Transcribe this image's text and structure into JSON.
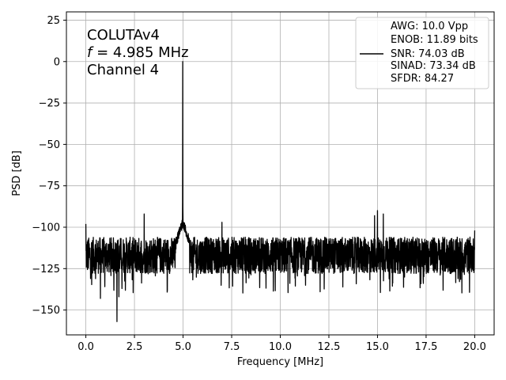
{
  "chart_data": {
    "type": "line",
    "xlabel": "Frequency [MHz]",
    "ylabel": "PSD [dB]",
    "xlim": [
      -1.0,
      21.0
    ],
    "ylim": [
      -165,
      30
    ],
    "xticks": [
      0.0,
      2.5,
      5.0,
      7.5,
      10.0,
      12.5,
      15.0,
      17.5,
      20.0
    ],
    "xtick_labels": [
      "0.0",
      "2.5",
      "5.0",
      "7.5",
      "10.0",
      "12.5",
      "15.0",
      "17.5",
      "20.0"
    ],
    "yticks": [
      -150,
      -125,
      -100,
      -75,
      -50,
      -25,
      0,
      25
    ],
    "ytick_labels": [
      "−150",
      "−125",
      "−100",
      "−75",
      "−50",
      "−25",
      "0",
      "25"
    ],
    "grid": true,
    "legend_position": "top-right",
    "annotation": {
      "line1": "COLUTAv4",
      "line2_var": "f",
      "line2_rest": " = 4.985 MHz",
      "line3": "Channel 4"
    },
    "legend": {
      "entries": [
        "AWG: 10.0 Vpp",
        "ENOB: 11.89 bits",
        "SNR: 74.03 dB",
        "SINAD: 73.34 dB",
        "SFDR: 84.27"
      ]
    },
    "series": [
      {
        "color": "#000000",
        "noise_floor": -115,
        "noise_range": [
          -128,
          -106
        ],
        "x_range": [
          0.0,
          20.0
        ],
        "peaks": [
          {
            "x": 4.985,
            "y": 0
          },
          {
            "x": 3.0,
            "y": -92
          },
          {
            "x": 7.0,
            "y": -97
          },
          {
            "x": 15.0,
            "y": -90
          },
          {
            "x": 14.85,
            "y": -93
          },
          {
            "x": 15.3,
            "y": -92
          },
          {
            "x": 0.0,
            "y": -98
          },
          {
            "x": 20.0,
            "y": -102
          }
        ],
        "dips": [
          {
            "x": 1.6,
            "y": -157
          },
          {
            "x": 1.7,
            "y": -142
          },
          {
            "x": 0.75,
            "y": -143
          }
        ]
      }
    ]
  }
}
